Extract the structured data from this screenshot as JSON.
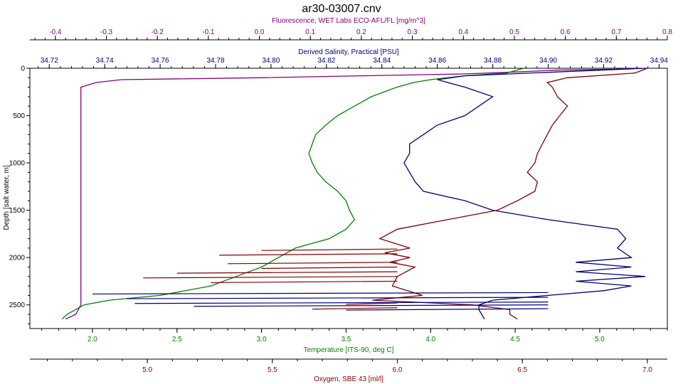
{
  "chart_data": {
    "type": "line",
    "title": "ar30-03007.cnv",
    "y_axis": {
      "label": "Depth [salt water, m]",
      "range": [
        0,
        2750
      ],
      "reversed": true,
      "ticks": [
        0,
        500,
        1000,
        1500,
        2000,
        2500
      ]
    },
    "x_axes": [
      {
        "key": "fluorescence",
        "label": "Fluorescence, WET Labs ECO-AFL/FL [mg/m^3]",
        "position": "top",
        "range": [
          -0.45,
          0.8
        ],
        "ticks": [
          -0.4,
          -0.3,
          -0.2,
          -0.1,
          0.0,
          0.1,
          0.2,
          0.3,
          0.4,
          0.5,
          0.6,
          0.7,
          0.8
        ],
        "color": "#800080"
      },
      {
        "key": "salinity",
        "label": "Derived Salinity, Practical [PSU]",
        "position": "top-inner",
        "range": [
          34.713,
          34.943
        ],
        "ticks": [
          34.72,
          34.74,
          34.76,
          34.78,
          34.8,
          34.82,
          34.84,
          34.86,
          34.88,
          34.9,
          34.92,
          34.94
        ],
        "color": "#000080"
      },
      {
        "key": "temperature",
        "label": "Temperature [ITS-90, deg C]",
        "position": "bottom",
        "range": [
          1.63,
          5.4
        ],
        "ticks": [
          2.0,
          2.5,
          3.0,
          3.5,
          4.0,
          4.5,
          5.0
        ],
        "color": "#008000"
      },
      {
        "key": "oxygen",
        "label": "Oxygen, SBE 43 [ml/l]",
        "position": "bottom-outer",
        "range": [
          4.53,
          7.08
        ],
        "ticks": [
          5.0,
          5.5,
          6.0,
          6.5,
          7.0
        ],
        "color": "#800000"
      }
    ],
    "series": [
      {
        "axis": "fluorescence",
        "color": "#800080",
        "depth": [
          0,
          10,
          20,
          40,
          60,
          80,
          100,
          120,
          150,
          200,
          300,
          500,
          800,
          1000,
          1300,
          1600,
          2000,
          2300,
          2500,
          2600,
          2650
        ],
        "values": [
          0.72,
          0.7,
          0.58,
          0.5,
          0.4,
          0.2,
          0.0,
          -0.27,
          -0.32,
          -0.35,
          -0.35,
          -0.35,
          -0.35,
          -0.35,
          -0.35,
          -0.35,
          -0.35,
          -0.35,
          -0.35,
          -0.36,
          -0.38
        ]
      },
      {
        "axis": "temperature",
        "color": "#008000",
        "depth": [
          0,
          50,
          80,
          100,
          120,
          150,
          200,
          300,
          400,
          500,
          600,
          700,
          800,
          900,
          1000,
          1100,
          1200,
          1300,
          1400,
          1500,
          1600,
          1700,
          1800,
          1900,
          2000,
          2100,
          2200,
          2300,
          2400,
          2450,
          2500,
          2550,
          2600,
          2650
        ],
        "values": [
          4.55,
          4.45,
          4.2,
          4.1,
          4.0,
          3.9,
          3.8,
          3.65,
          3.55,
          3.45,
          3.38,
          3.32,
          3.3,
          3.28,
          3.3,
          3.33,
          3.38,
          3.45,
          3.5,
          3.52,
          3.55,
          3.5,
          3.4,
          3.2,
          3.1,
          3.0,
          2.85,
          2.7,
          2.4,
          2.1,
          1.95,
          1.9,
          1.85,
          1.82
        ]
      },
      {
        "axis": "salinity",
        "color": "#000080",
        "depth": [
          0,
          80,
          120,
          200,
          300,
          400,
          500,
          600,
          700,
          800,
          900,
          1000,
          1100,
          1200,
          1300,
          1400,
          1500,
          1600,
          1700,
          1800,
          1900,
          2000,
          2050,
          2100,
          2150,
          2200,
          2250,
          2300,
          2350,
          2400,
          2450,
          2500,
          2550,
          2600,
          2650
        ],
        "values": [
          34.935,
          34.87,
          34.86,
          34.87,
          34.88,
          34.875,
          34.87,
          34.86,
          34.855,
          34.85,
          34.85,
          34.848,
          34.85,
          34.852,
          34.855,
          34.87,
          34.88,
          34.9,
          34.925,
          34.928,
          34.925,
          34.93,
          34.91,
          34.93,
          34.91,
          34.935,
          34.91,
          34.93,
          34.92,
          34.9,
          34.88,
          34.875,
          34.875,
          34.876,
          34.877
        ]
      },
      {
        "axis": "oxygen",
        "color": "#800000",
        "depth": [
          0,
          50,
          100,
          150,
          200,
          300,
          400,
          500,
          600,
          700,
          800,
          900,
          1000,
          1100,
          1200,
          1300,
          1400,
          1500,
          1600,
          1700,
          1800,
          1900,
          1950,
          2000,
          2050,
          2100,
          2200,
          2300,
          2400,
          2450,
          2500,
          2550,
          2600,
          2650
        ],
        "values": [
          7.0,
          6.95,
          6.68,
          6.6,
          6.62,
          6.64,
          6.68,
          6.65,
          6.62,
          6.6,
          6.58,
          6.56,
          6.55,
          6.52,
          6.56,
          6.55,
          6.48,
          6.4,
          6.2,
          6.0,
          5.93,
          6.05,
          5.95,
          6.05,
          5.97,
          6.07,
          6.0,
          5.98,
          6.1,
          5.9,
          6.3,
          6.45,
          6.45,
          6.48
        ]
      }
    ],
    "spikes": [
      {
        "axis": "temperature",
        "color": "#800000",
        "depths": [
          1910,
          1960,
          2050,
          2100,
          2150,
          2200,
          2250,
          2480,
          2530
        ],
        "values": [
          3.0,
          2.75,
          2.8,
          3.0,
          2.5,
          2.3,
          2.7,
          3.5,
          3.3
        ]
      },
      {
        "axis": "temperature",
        "color": "#000080",
        "depths": [
          2370,
          2420,
          2470,
          2500,
          2540
        ],
        "values": [
          2.0,
          2.2,
          2.25,
          2.6,
          3.5
        ]
      }
    ]
  }
}
